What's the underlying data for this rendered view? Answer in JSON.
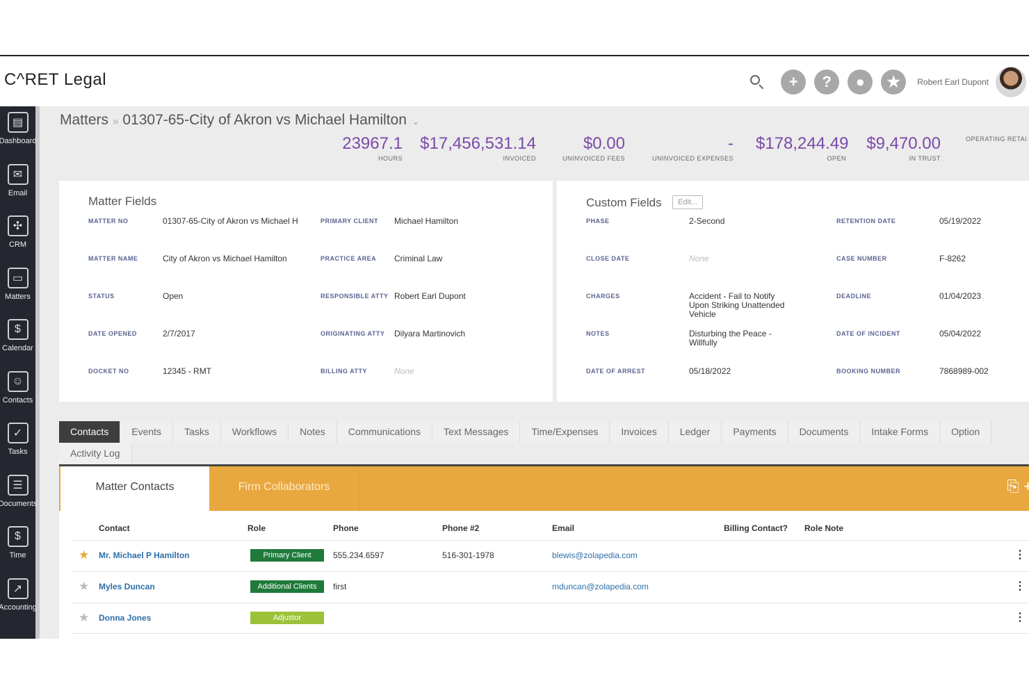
{
  "app": {
    "logo": "C^RET Legal"
  },
  "header": {
    "user_name": "Robert Earl Dupont",
    "icons": [
      "search-icon",
      "plus-icon",
      "help-icon",
      "chat-icon",
      "star-icon"
    ]
  },
  "sidebar": {
    "items": [
      {
        "label": "Dashboard",
        "icon": "dashboard-icon"
      },
      {
        "label": "Email",
        "icon": "email-icon"
      },
      {
        "label": "CRM",
        "icon": "crm-icon"
      },
      {
        "label": "Matters",
        "icon": "briefcase-icon"
      },
      {
        "label": "Calendar",
        "icon": "calendar-icon"
      },
      {
        "label": "Contacts",
        "icon": "contacts-icon"
      },
      {
        "label": "Tasks",
        "icon": "tasks-icon"
      },
      {
        "label": "Documents",
        "icon": "documents-icon"
      },
      {
        "label": "Time",
        "icon": "time-icon"
      },
      {
        "label": "Accounting",
        "icon": "accounting-icon"
      }
    ]
  },
  "breadcrumb": {
    "root": "Matters",
    "sep": "»",
    "current": "01307-65-City of Akron vs Michael Hamilton",
    "caret": "⌄"
  },
  "stats": [
    {
      "value": "23967.1",
      "label": "HOURS"
    },
    {
      "value": "$17,456,531.14",
      "label": "INVOICED"
    },
    {
      "value": "$0.00",
      "label": "UNINVOICED FEES"
    },
    {
      "value": "-",
      "label": "UNINVOICED EXPENSES"
    },
    {
      "value": "$178,244.49",
      "label": "OPEN"
    },
    {
      "value": "$9,470.00",
      "label": "IN TRUST"
    },
    {
      "value": "",
      "label": "OPERATING RETAI"
    }
  ],
  "matter_fields": {
    "title": "Matter Fields",
    "left": [
      {
        "label": "MATTER NO",
        "value": "01307-65-City of Akron vs Michael H"
      },
      {
        "label": "MATTER NAME",
        "value": "City of Akron vs Michael Hamilton"
      },
      {
        "label": "STATUS",
        "value": "Open"
      },
      {
        "label": "DATE OPENED",
        "value": "2/7/2017"
      },
      {
        "label": "DOCKET NO",
        "value": "12345 - RMT"
      }
    ],
    "right": [
      {
        "label": "PRIMARY CLIENT",
        "value": "Michael Hamilton"
      },
      {
        "label": "PRACTICE AREA",
        "value": "Criminal Law"
      },
      {
        "label": "RESPONSIBLE ATTY",
        "value": "Robert Earl Dupont"
      },
      {
        "label": "ORIGINATING ATTY",
        "value": "Dilyara Martinovich"
      },
      {
        "label": "BILLING ATTY",
        "value": "None"
      }
    ]
  },
  "custom_fields": {
    "title": "Custom Fields",
    "edit_label": "Edit...",
    "left": [
      {
        "label": "PHASE",
        "value": "2-Second"
      },
      {
        "label": "CLOSE DATE",
        "value": "None"
      },
      {
        "label": "CHARGES",
        "value": "Accident - Fail to Notify Upon Striking Unattended Vehicle"
      },
      {
        "label": "NOTES",
        "value": "Disturbing the Peace - Willfully"
      },
      {
        "label": "DATE OF ARREST",
        "value": "05/18/2022"
      }
    ],
    "right": [
      {
        "label": "RETENTION DATE",
        "value": "05/19/2022"
      },
      {
        "label": "CASE NUMBER",
        "value": "F-8262"
      },
      {
        "label": "DEADLINE",
        "value": "01/04/2023"
      },
      {
        "label": "DATE OF INCIDENT",
        "value": "05/04/2022"
      },
      {
        "label": "BOOKING NUMBER",
        "value": "7868989-002"
      }
    ]
  },
  "tabs": {
    "row1": [
      "Contacts",
      "Events",
      "Tasks",
      "Workflows",
      "Notes",
      "Communications",
      "Text Messages",
      "Time/Expenses",
      "Invoices",
      "Ledger",
      "Payments",
      "Documents",
      "Intake Forms",
      "Option"
    ],
    "row2": [
      "Activity Log"
    ]
  },
  "contacts": {
    "sub_tabs": [
      "Matter Contacts",
      "Firm Collaborators"
    ],
    "columns": [
      "Contact",
      "Role",
      "Phone",
      "Phone #2",
      "Email",
      "Billing Contact?",
      "Role Note"
    ],
    "rows": [
      {
        "name": "Mr. Michael P Hamilton",
        "role": "Primary Client",
        "role_color": "#1f7a3a",
        "phone": "555.234.6597",
        "phone2": "516-301-1978",
        "email": "blewis@zolapedia.com",
        "starred": true
      },
      {
        "name": "Myles Duncan",
        "role": "Additional Clients",
        "role_color": "#1f7a3a",
        "phone": "first",
        "phone2": "",
        "email": "mduncan@zolapedia.com",
        "starred": false
      },
      {
        "name": "Donna Jones",
        "role": "Adjustor",
        "role_color": "#9cc23a",
        "phone": "",
        "phone2": "",
        "email": "",
        "starred": false
      }
    ]
  },
  "colors": {
    "accent": "#7a4aa8",
    "orange": "#e9a83f",
    "sidebar": "#24272f",
    "link": "#2e6fa8"
  }
}
